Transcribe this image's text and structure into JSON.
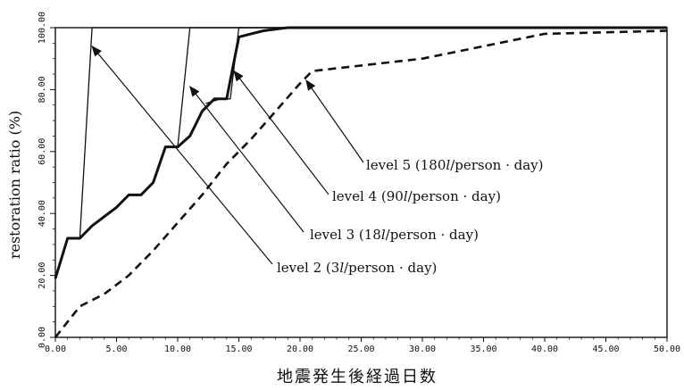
{
  "chart_data": {
    "type": "line",
    "title": "",
    "xlabel": "地震発生後経過日数",
    "ylabel": "restoration ratio (%)",
    "xlim": [
      0,
      50
    ],
    "ylim": [
      0,
      100
    ],
    "x_ticks": [
      "0.00",
      "5.00",
      "10.00",
      "15.00",
      "20.00",
      "25.00",
      "30.00",
      "35.00",
      "40.00",
      "45.00",
      "50.00"
    ],
    "y_ticks": [
      "0.00",
      "20.00",
      "40.00",
      "60.00",
      "80.00",
      "100.00"
    ],
    "grid": false,
    "series": [
      {
        "name": "level 2 (3l/person · day)",
        "style": "thin",
        "x": [
          0,
          1,
          2,
          3,
          50
        ],
        "y": [
          19,
          32,
          32,
          100,
          100
        ]
      },
      {
        "name": "level 3 (18l/person · day)",
        "style": "thin",
        "x": [
          9.5,
          10,
          11,
          50
        ],
        "y": [
          61.5,
          61.5,
          100,
          100
        ]
      },
      {
        "name": "level 4 (90l/person · day)",
        "style": "thin",
        "x": [
          12.3,
          13.5,
          14.3,
          15,
          50
        ],
        "y": [
          75.5,
          77,
          77,
          100,
          100
        ]
      },
      {
        "name": "level 5 (180l/person · day)",
        "style": "bold",
        "x": [
          0,
          1,
          2,
          3,
          4,
          5,
          6,
          7,
          8,
          9,
          10,
          11,
          12,
          13,
          14,
          15,
          16,
          17,
          18,
          19,
          20,
          50
        ],
        "y": [
          19,
          32,
          32,
          36,
          39,
          42,
          46,
          46,
          50,
          61.5,
          61.5,
          65,
          73,
          77,
          77,
          97,
          98,
          99,
          99.5,
          100,
          100,
          100
        ]
      },
      {
        "name": "",
        "style": "dashed",
        "x": [
          0,
          2,
          4,
          6,
          8,
          10,
          12,
          14,
          16,
          18,
          20,
          21,
          30,
          40,
          50
        ],
        "y": [
          0,
          10,
          14,
          20,
          28,
          37,
          46,
          56,
          64,
          73,
          82,
          86,
          90,
          98,
          99
        ]
      }
    ],
    "annotations": [
      {
        "prefix": "level 2 (3",
        "unit": "l",
        "suffix": "/person · day)",
        "target_x": 3,
        "target_y": 94
      },
      {
        "prefix": "level 3 (18",
        "unit": "l",
        "suffix": "/person · day)",
        "target_x": 11,
        "target_y": 81
      },
      {
        "prefix": "level 4 (90",
        "unit": "l",
        "suffix": "/person · day)",
        "target_x": 14.6,
        "target_y": 86
      },
      {
        "prefix": "level 5 (180",
        "unit": "l",
        "suffix": "/person · day)",
        "target_x": 20.5,
        "target_y": 83
      }
    ]
  }
}
